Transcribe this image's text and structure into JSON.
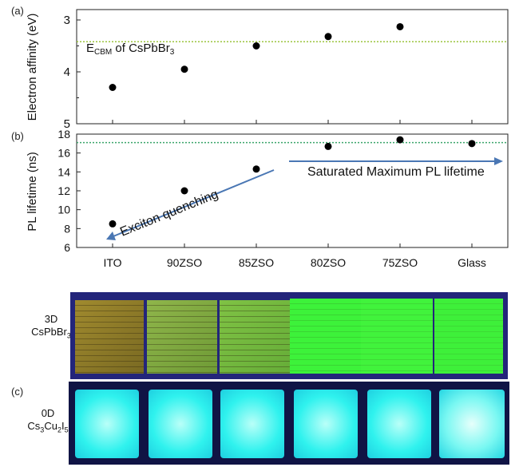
{
  "panel_labels": {
    "a": "(a)",
    "b": "(b)",
    "c": "(c)"
  },
  "chart_data": [
    {
      "type": "scatter",
      "panel": "a",
      "ylabel": "Electron affinity (eV)",
      "ylim": [
        5,
        2.8
      ],
      "y_inverted": true,
      "yticks": [
        3,
        4,
        5
      ],
      "categories": [
        "ITO",
        "90ZSO",
        "85ZSO",
        "80ZSO",
        "75ZSO",
        "Glass"
      ],
      "values": [
        4.3,
        3.95,
        3.5,
        3.32,
        3.13,
        null
      ],
      "reference_line": {
        "value": 3.42,
        "label_main": "E",
        "label_sub": "CBM",
        "label_rest": " of CsPbBr",
        "label_sub2": "3",
        "color": "#9bc53d"
      }
    },
    {
      "type": "scatter",
      "panel": "b",
      "ylabel": "PL lifetime (ns)",
      "ylim": [
        6,
        18
      ],
      "yticks": [
        6,
        8,
        10,
        12,
        14,
        16,
        18
      ],
      "xlabel": "",
      "categories": [
        "ITO",
        "90ZSO",
        "85ZSO",
        "80ZSO",
        "75ZSO",
        "Glass"
      ],
      "values": [
        8.5,
        12.0,
        14.3,
        16.7,
        17.4,
        17.0
      ],
      "reference_line": {
        "value": 17.1,
        "color": "#3aa56a"
      },
      "annotations": [
        {
          "text": "Saturated Maximum PL lifetime",
          "arrow": "right"
        },
        {
          "text": "Exciton quenching",
          "arrow": "down-left"
        }
      ]
    }
  ],
  "photos": {
    "row1": {
      "label_line1": "3D",
      "label_line2": "CsPbBr",
      "label_line2_sub": "3"
    },
    "row2": {
      "label_line1": "0D",
      "label_line2_parts": [
        "Cs",
        "3",
        "Cu",
        "2",
        "I",
        "5"
      ]
    }
  },
  "colors": {
    "point": "#000000",
    "arrow": "#4a77b4",
    "green_film": "#3df23a",
    "cyan_film": "#2ff2ee",
    "uv_background": "#1b1f6e"
  }
}
